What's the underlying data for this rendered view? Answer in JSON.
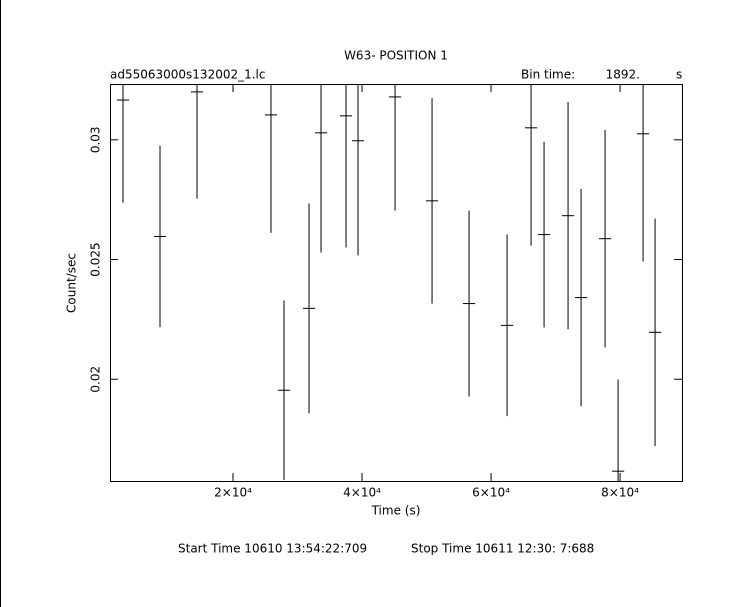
{
  "chart_data": {
    "type": "errorbar",
    "title": "W63- POSITION 1",
    "file_name": "ad55063000s132002_1.lc",
    "bin_time_label": "Bin time:",
    "bin_time": {
      "value": 1892,
      "label": "1892."
    },
    "bin_time_unit": "s",
    "x_label": "Time (s)",
    "y_label": "Count/sec",
    "start_time": "Start Time 10610 13:54:22:709",
    "stop_time": "Stop Time 10611 12:30: 7:688",
    "color": "#000000",
    "x": [
      2945,
      8682,
      14419,
      25885,
      27900,
      31783,
      33642,
      37520,
      39380,
      45116,
      50852,
      56589,
      62480,
      66200,
      68216,
      71937,
      73953,
      77674,
      79690,
      83566,
      85426
    ],
    "values": [
      0.03166,
      0.02596,
      0.032,
      0.03104,
      0.01954,
      0.02296,
      0.03029,
      0.031,
      0.02996,
      0.03179,
      0.02745,
      0.02316,
      0.02225,
      0.0305,
      0.02604,
      0.02683,
      0.02341,
      0.02587,
      0.01616,
      0.03025,
      0.02196
    ],
    "errors": [
      0.00429,
      0.00379,
      0.00446,
      0.00492,
      0.00375,
      0.00438,
      0.005,
      0.0055,
      0.00479,
      0.00475,
      0.00429,
      0.00388,
      0.00379,
      0.00492,
      0.00388,
      0.00475,
      0.00454,
      0.00454,
      0.00383,
      0.00533,
      0.00475
    ],
    "xlim": [
      930,
      89600
    ],
    "ylim": [
      0.01575,
      0.03233
    ],
    "xticks": [
      {
        "value": 20000,
        "label": "2×10⁴"
      },
      {
        "value": 40000,
        "label": "4×10⁴"
      },
      {
        "value": 60000,
        "label": "6×10⁴"
      },
      {
        "value": 80000,
        "label": "8×10⁴"
      }
    ],
    "yticks": [
      0.02,
      0.025,
      0.03
    ]
  }
}
